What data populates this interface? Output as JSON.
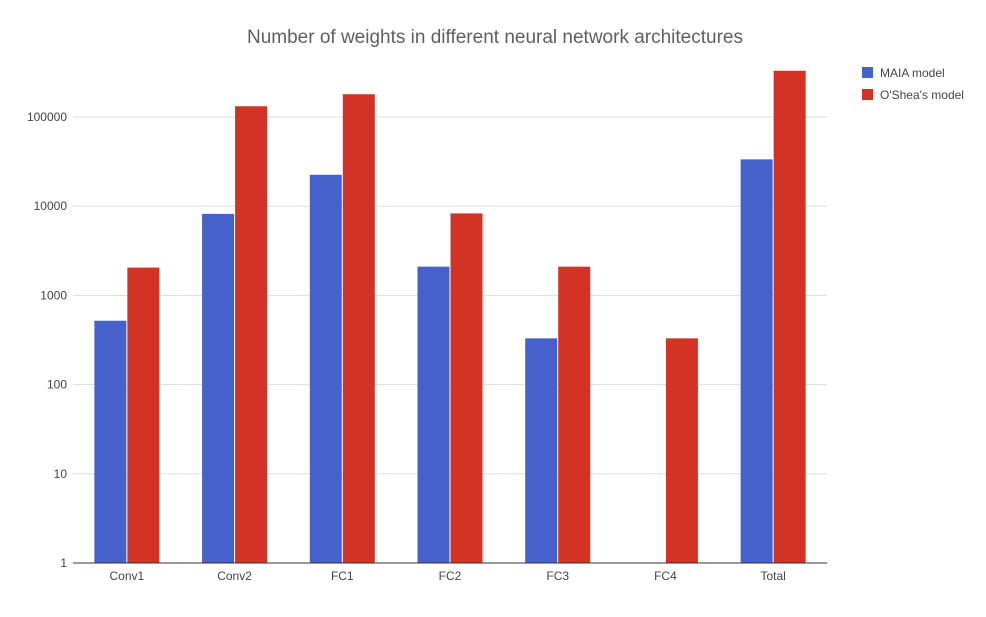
{
  "chart_data": {
    "type": "bar",
    "title": "Number of weights in different neural network architectures",
    "xlabel": "",
    "ylabel": "",
    "y_scale": "log",
    "ylim": [
      1,
      500000
    ],
    "y_ticks": [
      "1",
      "10",
      "100",
      "1000",
      "10000",
      "100000"
    ],
    "categories": [
      "Conv1",
      "Conv2",
      "FC1",
      "FC2",
      "FC3",
      "FC4",
      "Total"
    ],
    "series": [
      {
        "name": "MAIA model",
        "color": "#4661cc",
        "values": [
          520,
          8200,
          22500,
          2100,
          330,
          null,
          33500
        ]
      },
      {
        "name": "O'Shea's model",
        "color": "#d33324",
        "values": [
          2050,
          132000,
          180000,
          8300,
          2100,
          330,
          330000
        ]
      }
    ],
    "grid": true,
    "legend_position": "right"
  }
}
